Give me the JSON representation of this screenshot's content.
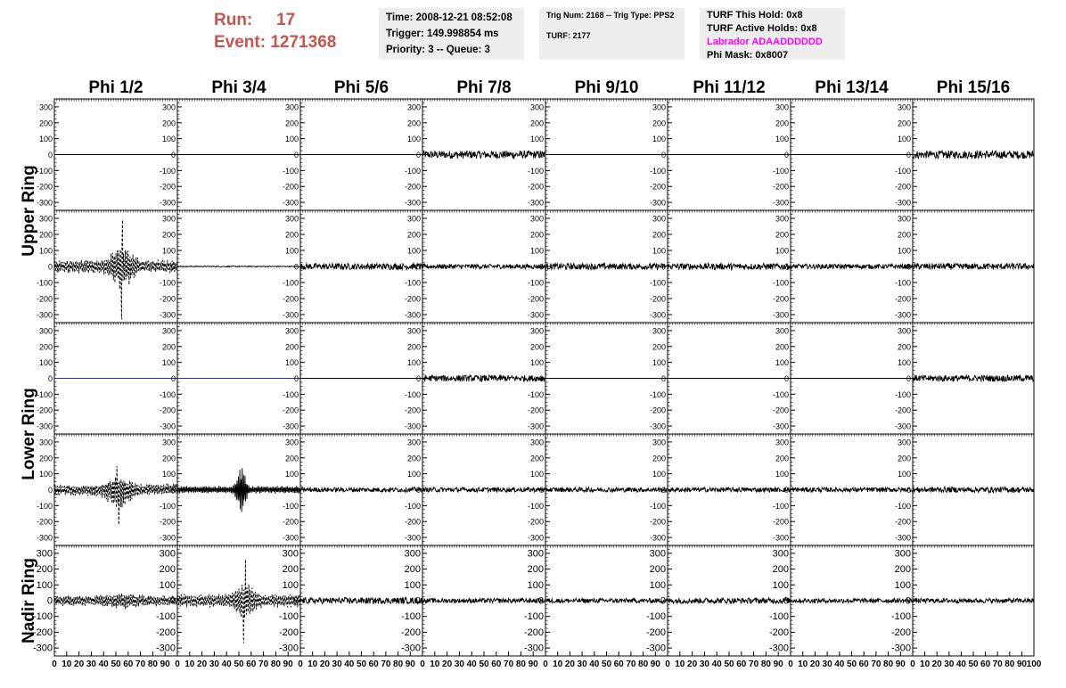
{
  "header": {
    "run_label": "Run:",
    "run_value": "17",
    "event_label": "Event:",
    "event_value": "1271368"
  },
  "info_panel_1": {
    "time": "Time: 2008-12-21 08:52:08",
    "trigger": "Trigger: 149.998854 ms",
    "priority": "Priority: 3 -- Queue: 3"
  },
  "info_panel_2": {
    "trig": "Trig Num: 2168 -- Trig Type: PPS2",
    "turf": "TURF: 2177"
  },
  "info_panel_3": {
    "hold": "TURF This Hold: 0x8",
    "active": "TURF Active Holds: 0x8",
    "labrador": "Labrador ADAADDDDDD",
    "mask": "Phi Mask: 0x8007",
    "labrador_color": "#ff00ff"
  },
  "chart_data": {
    "type": "line",
    "columns": [
      "Phi 1/2",
      "Phi 3/4",
      "Phi 5/6",
      "Phi 7/8",
      "Phi 9/10",
      "Phi 11/12",
      "Phi 13/14",
      "Phi 15/16"
    ],
    "ring_labels": [
      "Upper Ring",
      "Lower Ring",
      "Nadir Ring"
    ],
    "rows_per_ring": [
      2,
      2,
      1
    ],
    "xlim": [
      0,
      100
    ],
    "ylim": [
      -350,
      350
    ],
    "x_ticks": [
      0,
      10,
      20,
      30,
      40,
      50,
      60,
      70,
      80,
      90,
      100
    ],
    "y_ticks": [
      -300,
      -200,
      -100,
      0,
      100,
      200,
      300
    ],
    "colors": {
      "trace": "#000000",
      "flat_blue": "#2a2aa8"
    },
    "panels": [
      [
        "flat",
        "flat",
        "flat",
        "w25",
        "flat",
        "flat",
        "flat",
        "w25"
      ],
      [
        "big1",
        "tiny",
        "w20",
        "w15",
        "w20",
        "w20",
        "w15",
        "w20"
      ],
      [
        "flatblue",
        "flatblue",
        "flat",
        "w20",
        "flat",
        "flat",
        "flat",
        "w20"
      ],
      [
        "big2",
        "big3",
        "w15",
        "w15",
        "w15",
        "w15",
        "w15",
        "w18"
      ],
      [
        "big4",
        "big5",
        "w20",
        "w15",
        "w15",
        "w18",
        "w15",
        "w15"
      ]
    ]
  }
}
